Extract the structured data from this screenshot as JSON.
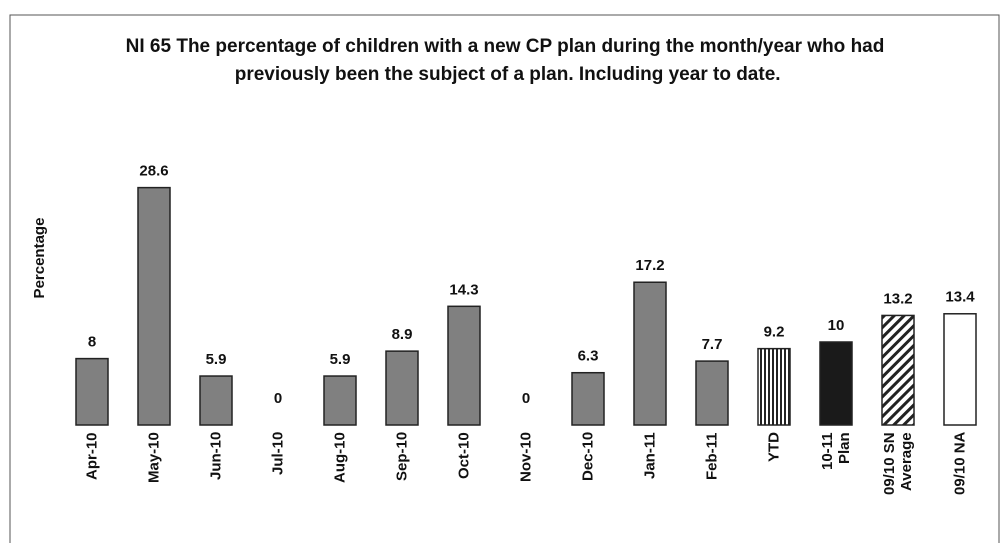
{
  "chart_data": {
    "type": "bar",
    "title": "NI 65 The percentage of children with a new CP plan during the month/year who had previously been the subject of a plan. Including year to date.",
    "y_label": "Percentage",
    "categories": [
      "Apr-10",
      "May-10",
      "Jun-10",
      "Jul-10",
      "Aug-10",
      "Sep-10",
      "Oct-10",
      "Nov-10",
      "Dec-10",
      "Jan-11",
      "Feb-11",
      "YTD",
      "10-11\nPlan",
      "09/10 SN\nAverage",
      "09/10 NA"
    ],
    "values": [
      8,
      28.6,
      5.9,
      0,
      5.9,
      8.9,
      14.3,
      0,
      6.3,
      17.2,
      7.7,
      9.2,
      10,
      13.2,
      13.4
    ],
    "colors": [
      "#808080",
      "#808080",
      "#808080",
      "#808080",
      "#808080",
      "#808080",
      "#808080",
      "#808080",
      "#808080",
      "#808080",
      "#808080",
      "vertical-stripes",
      "#1a1a1a",
      "diagonal-stripes",
      "#ffffff"
    ],
    "ylim": [
      0,
      30
    ]
  }
}
